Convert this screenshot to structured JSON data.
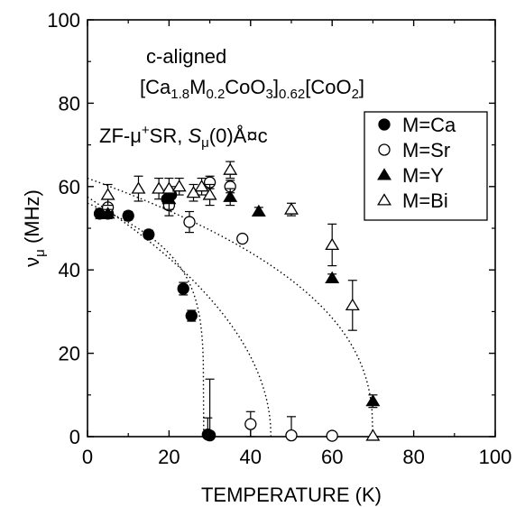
{
  "chart_data": {
    "type": "scatter",
    "xlabel": "TEMPERATURE (K)",
    "ylabel": {
      "base": "ν",
      "sub": "μ",
      "unit": " (MHz)"
    },
    "xlim": [
      0,
      100
    ],
    "ylim": [
      0,
      100
    ],
    "xticks": [
      "0",
      "20",
      "40",
      "60",
      "80",
      "100"
    ],
    "yticks": [
      "0",
      "20",
      "40",
      "60",
      "80",
      "100"
    ],
    "grid": false,
    "legend_position": "top-right",
    "annotations": {
      "line1": "c-aligned",
      "line2": {
        "p1": "[Ca",
        "s1": "1.8",
        "p2": "M",
        "s2": "0.2",
        "p3": "CoO",
        "s3": "3",
        "p4": "]",
        "s4": "0.62",
        "p5": "[CoO",
        "s5": "2",
        "p6": "]"
      },
      "line3": {
        "p1": "ZF-μ",
        "sup": "+",
        "p2": "SR, ",
        "ital": "S",
        "isub": "μ",
        "p3": "(0)Å¤c"
      }
    },
    "series": [
      {
        "name": "M=Ca",
        "marker": "circle",
        "filled": true,
        "x": [
          3,
          5,
          10,
          15,
          19.5,
          20.5,
          23.5,
          25.5,
          29.5,
          30
        ],
        "y": [
          53.5,
          53.5,
          53,
          48.5,
          57,
          58,
          35.5,
          29,
          0.5,
          0.3
        ],
        "err": [
          1.2,
          1.2,
          1,
          1,
          2,
          2,
          1.5,
          1.3,
          4,
          13.5
        ]
      },
      {
        "name": "M=Sr",
        "marker": "circle",
        "filled": false,
        "x": [
          5,
          20,
          25,
          30,
          35,
          38,
          40,
          50,
          60
        ],
        "y": [
          55,
          55.5,
          51.5,
          61,
          60,
          47.5,
          3,
          0.3,
          0.2
        ],
        "err": [
          2,
          2.5,
          2.5,
          1.5,
          1.5,
          0,
          3,
          4.5,
          0
        ]
      },
      {
        "name": "M=Y",
        "marker": "triangle",
        "filled": true,
        "x": [
          5,
          20,
          35,
          42,
          60,
          70
        ],
        "y": [
          53.5,
          57,
          57.5,
          54,
          38,
          8.5
        ],
        "err": [
          1,
          2.5,
          2,
          1,
          1,
          1.5
        ]
      },
      {
        "name": "M=Bi",
        "marker": "triangle",
        "filled": false,
        "x": [
          5,
          12.5,
          17.5,
          20,
          22.5,
          26,
          28,
          30,
          35,
          50,
          60,
          65,
          70
        ],
        "y": [
          58,
          59.5,
          59.5,
          59.5,
          60,
          58.5,
          60,
          58,
          64,
          54.5,
          46,
          31.5,
          0.2
        ],
        "err": [
          2.5,
          3,
          2.5,
          2.5,
          2,
          2,
          2,
          2.5,
          2,
          1.5,
          5,
          6,
          0
        ]
      }
    ],
    "fit_curves": [
      {
        "nu0": 56,
        "Tc": 28.5,
        "alpha": 0.2
      },
      {
        "nu0": 57.5,
        "Tc": 45,
        "alpha": 0.5
      },
      {
        "nu0": 62,
        "Tc": 70,
        "alpha": 0.4
      }
    ]
  }
}
